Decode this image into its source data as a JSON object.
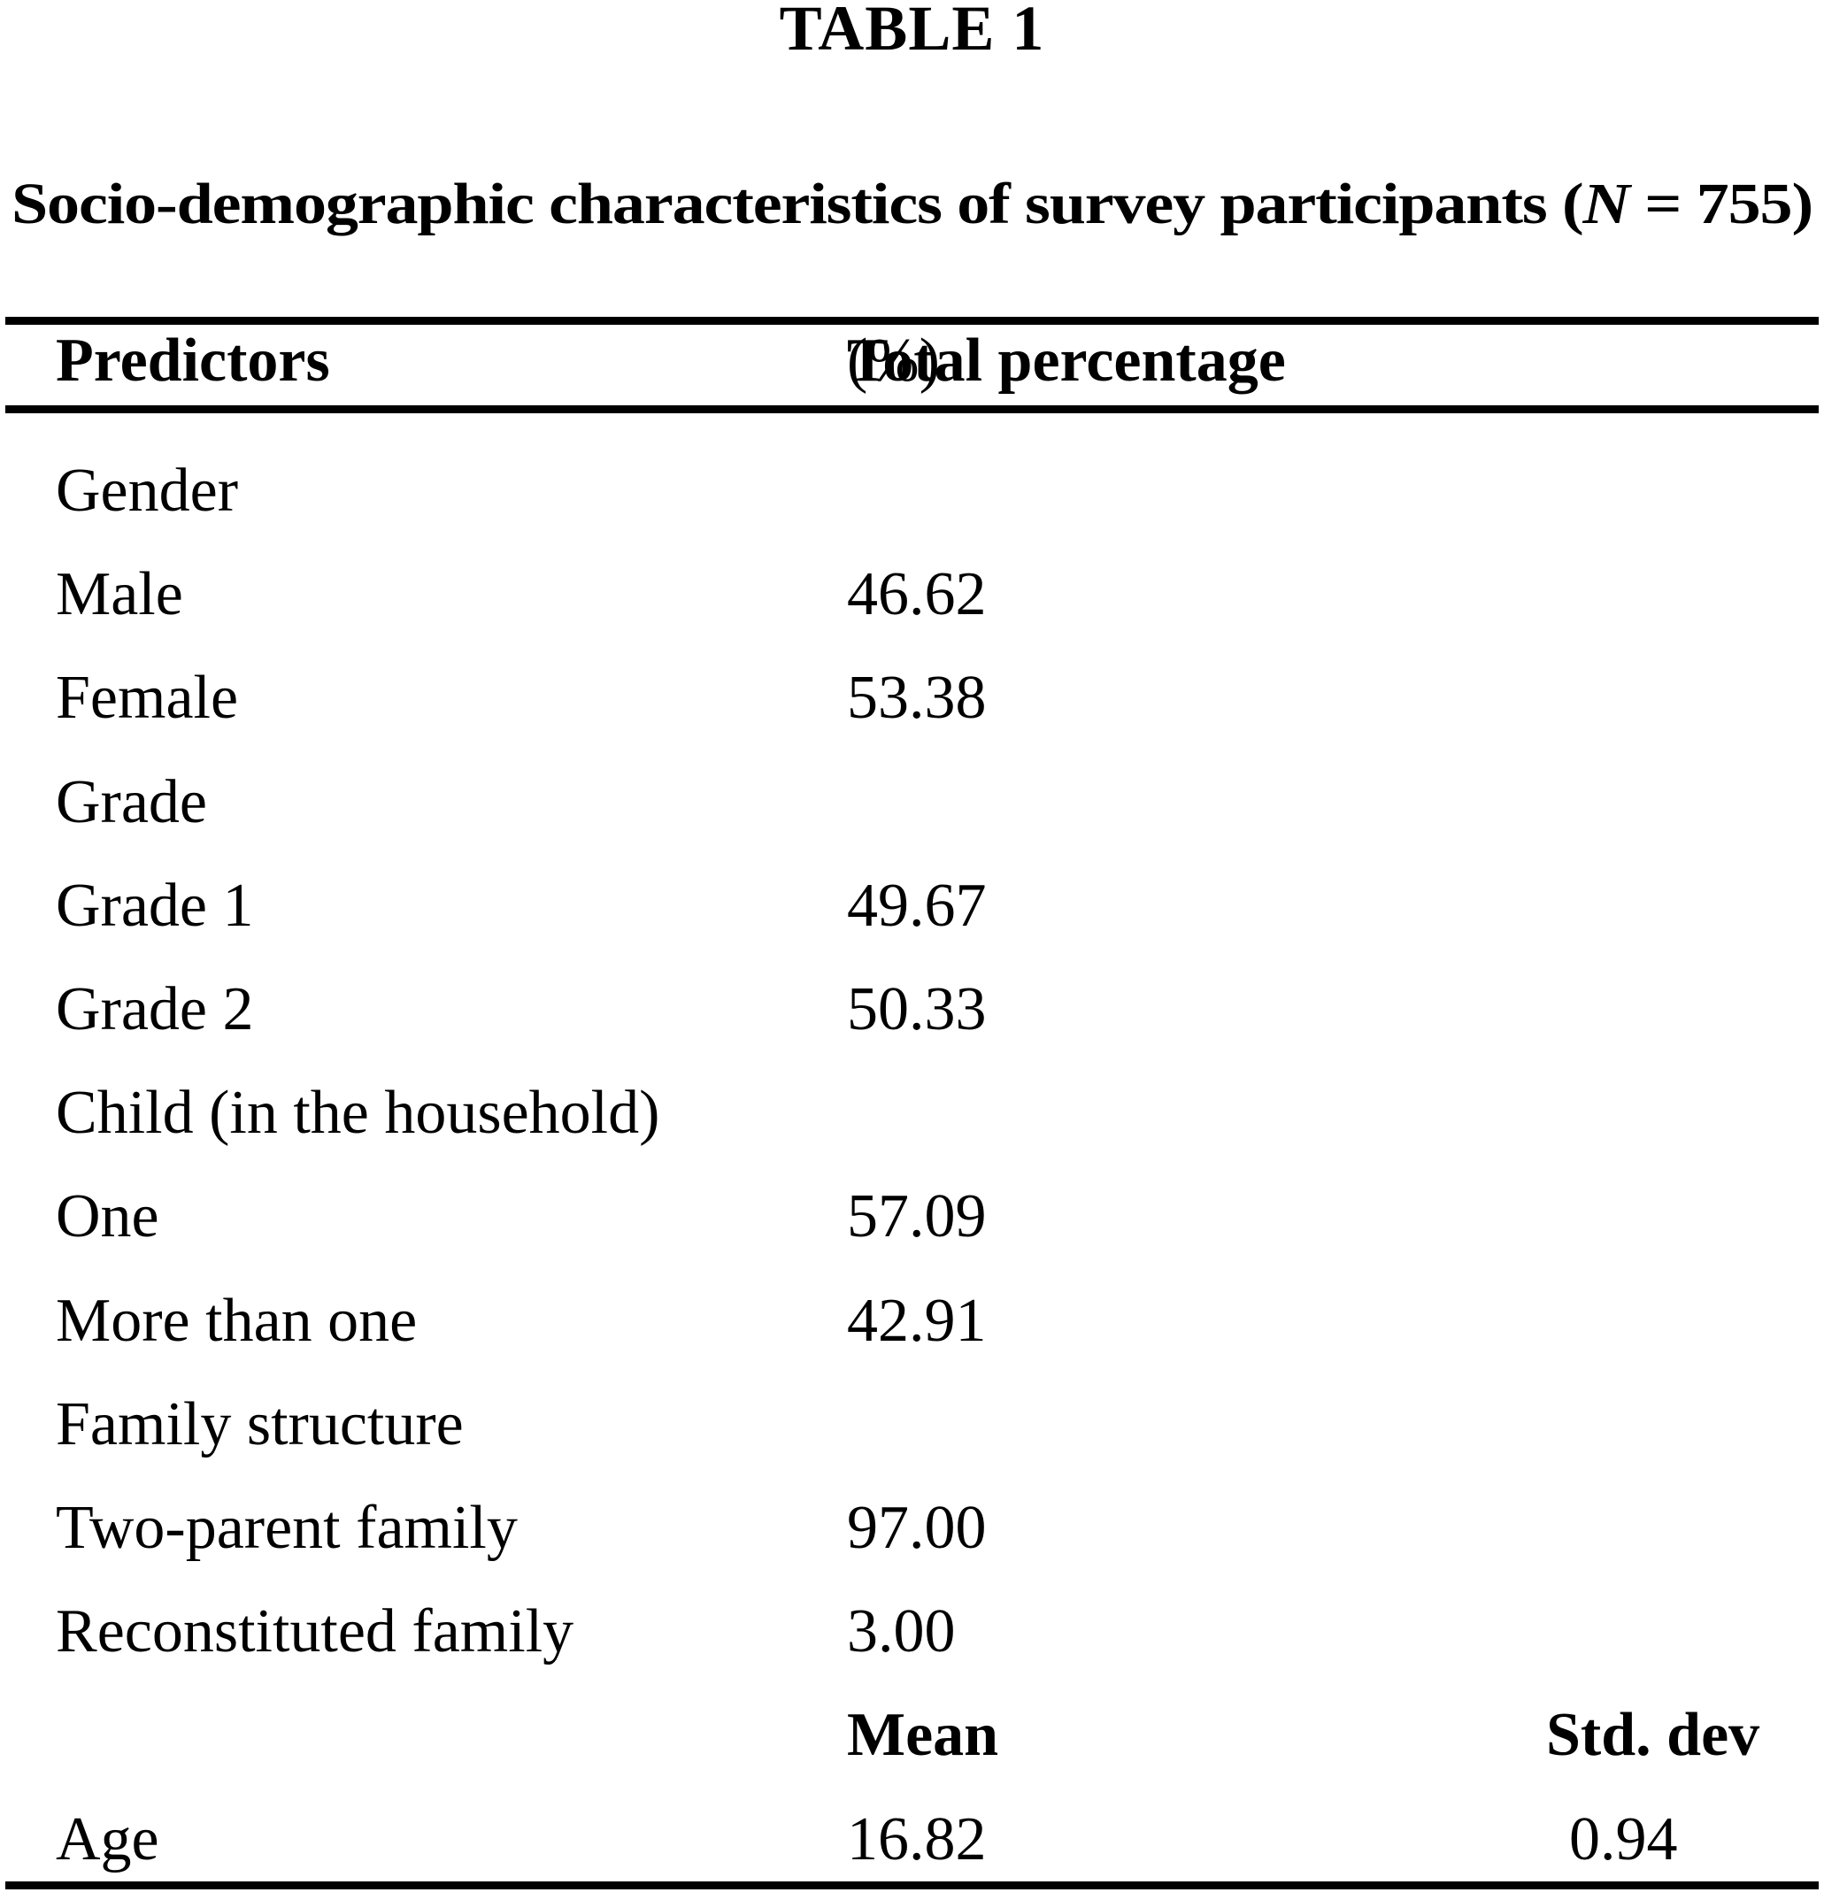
{
  "page": {
    "background_color": "#ffffff",
    "text_color": "#000000"
  },
  "table_label": "TABLE 1",
  "title": {
    "prefix": "Socio-demographic characteristics of survey participants (",
    "n_symbol": "N",
    "suffix": " = 755)"
  },
  "header": {
    "col1": "Predictors",
    "col2_bold": "Total percentage",
    "col2_regular": "(%)"
  },
  "table": {
    "columns": [
      "Predictors",
      "Total percentage (%)"
    ],
    "footer_columns": [
      "Mean",
      "Std. dev"
    ],
    "rows": [
      {
        "c1": "Gender"
      },
      {
        "c1": "Male",
        "c2": "46.62"
      },
      {
        "c1": "Female",
        "c2": "53.38"
      },
      {
        "c1": "Grade"
      },
      {
        "c1": "Grade 1",
        "c2": "49.67"
      },
      {
        "c1": "Grade 2",
        "c2": "50.33"
      },
      {
        "c1": "Child (in the household)"
      },
      {
        "c1": "One",
        "c2": "57.09"
      },
      {
        "c1": "More than one",
        "c2": "42.91"
      },
      {
        "c1": "Family structure"
      },
      {
        "c1": "Two-parent family",
        "c2": "97.00"
      },
      {
        "c1": "Reconstituted family",
        "c2": "3.00"
      },
      {
        "c2": "Mean",
        "c3": "Std. dev",
        "bold": true
      },
      {
        "c1": "Age",
        "c2": "16.82",
        "c3": "0.94"
      }
    ]
  }
}
